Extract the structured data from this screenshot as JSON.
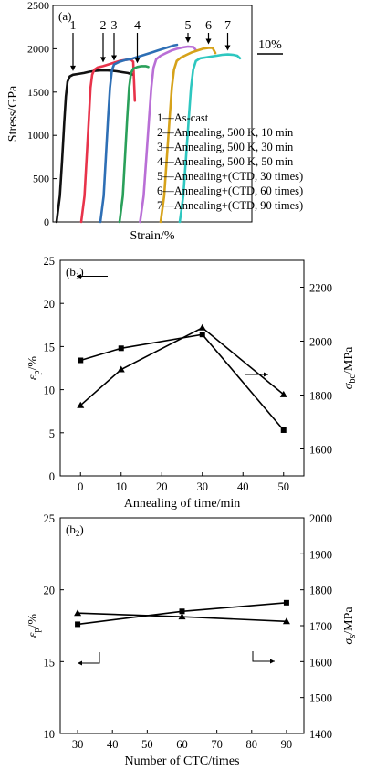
{
  "chart_data": [
    {
      "panel": "(a)",
      "type": "line",
      "xlabel": "Strain/%",
      "ylabel": "Stress/GPa",
      "ylim": [
        0,
        2500
      ],
      "yticks": [
        0,
        500,
        1000,
        1500,
        2000,
        2500
      ],
      "scale_bar": "10%",
      "grid": false,
      "legend_position": "bottom-right",
      "legend": [
        "1—As-cast",
        "2—Annealing, 500 K, 10 min",
        "3—Annealing, 500 K, 30 min",
        "4—Annealing, 500 K, 50 min",
        "5—Annealing+(CTD, 30 times)",
        "6—Annealing+(CTD, 60 times)",
        "7—Annealing+(CTD, 90 times)"
      ],
      "curve_labels": [
        "1",
        "2",
        "3",
        "4",
        "5",
        "6",
        "7"
      ],
      "series": [
        {
          "label": "1",
          "color": "#111111",
          "x": [
            0,
            1.2,
            2.0,
            2.8,
            3.4,
            4.0,
            4.8,
            6,
            8,
            10,
            12,
            14,
            16,
            18,
            20,
            22,
            24,
            26,
            28
          ],
          "y": [
            0,
            300,
            700,
            1150,
            1450,
            1620,
            1680,
            1700,
            1710,
            1720,
            1735,
            1745,
            1750,
            1752,
            1748,
            1740,
            1730,
            1720,
            1700
          ]
        },
        {
          "label": "2",
          "color": "#e8334a",
          "x": [
            9,
            10.2,
            11,
            11.8,
            12.4,
            13,
            13.8,
            15,
            17,
            19,
            21,
            23,
            25,
            27,
            28,
            28.6
          ],
          "y": [
            0,
            300,
            750,
            1200,
            1550,
            1700,
            1760,
            1785,
            1800,
            1820,
            1840,
            1860,
            1870,
            1880,
            1850,
            1400
          ]
        },
        {
          "label": "3",
          "color": "#2e6fb5",
          "x": [
            16,
            17.2,
            18,
            18.8,
            19.5,
            20.2,
            21,
            23,
            25,
            27,
            29,
            31,
            33,
            35,
            37,
            39,
            41,
            43,
            44
          ],
          "y": [
            0,
            300,
            750,
            1200,
            1550,
            1750,
            1820,
            1850,
            1870,
            1880,
            1900,
            1920,
            1940,
            1960,
            1980,
            2000,
            2020,
            2040,
            2045
          ]
        },
        {
          "label": "4",
          "color": "#2aa05a",
          "x": [
            23,
            24.2,
            25,
            25.8,
            26.5,
            27.2,
            28,
            29.5,
            31,
            32.5,
            33.5
          ],
          "y": [
            0,
            300,
            750,
            1200,
            1550,
            1720,
            1770,
            1790,
            1800,
            1800,
            1790
          ]
        },
        {
          "label": "5",
          "color": "#b96fd6",
          "x": [
            30.5,
            31.8,
            32.8,
            33.8,
            34.6,
            35.4,
            36.4,
            38,
            40,
            42,
            44,
            46,
            48,
            50,
            51
          ],
          "y": [
            0,
            300,
            750,
            1200,
            1550,
            1780,
            1880,
            1920,
            1950,
            1980,
            2000,
            2015,
            2025,
            2020,
            1980
          ]
        },
        {
          "label": "6",
          "color": "#d6a21a",
          "x": [
            38,
            39.3,
            40.3,
            41.3,
            42.1,
            42.9,
            43.9,
            45.5,
            47.5,
            49.5,
            51.5,
            53.5,
            55.5,
            57,
            58
          ],
          "y": [
            0,
            300,
            750,
            1200,
            1550,
            1760,
            1860,
            1900,
            1930,
            1960,
            1980,
            2000,
            2010,
            2010,
            1950
          ]
        },
        {
          "label": "7",
          "color": "#2ec7c0",
          "x": [
            45,
            46.3,
            47.3,
            48.3,
            49.1,
            49.9,
            50.9,
            52.5,
            54.5,
            56.5,
            58.5,
            60.5,
            62.5,
            64.5,
            66,
            67
          ],
          "y": [
            0,
            300,
            750,
            1200,
            1550,
            1760,
            1860,
            1890,
            1900,
            1910,
            1920,
            1930,
            1935,
            1930,
            1920,
            1890
          ]
        }
      ]
    },
    {
      "panel": "(b₁)",
      "panel_base": "(b",
      "panel_sub": "1",
      "panel_close": ")",
      "type": "line",
      "x": [
        0,
        10,
        30,
        50
      ],
      "xlim": [
        -5,
        55
      ],
      "xticks": [
        0,
        10,
        20,
        30,
        40,
        50
      ],
      "xlabel": "Annealing of time/min",
      "ylabel_left": "εp/%",
      "ylabel_left_main": "ε",
      "ylabel_left_sub": "p",
      "ylabel_left_tail": "/%",
      "ylim_left": [
        0,
        25
      ],
      "yticks_left": [
        0,
        5,
        10,
        15,
        20,
        25
      ],
      "ylabel_right": "σbc/MPa",
      "ylabel_right_main": "σ",
      "ylabel_right_sub": "bc",
      "ylabel_right_tail": "/MPa",
      "ylim_right": [
        1500,
        2300
      ],
      "yticks_right": [
        1600,
        1800,
        2000,
        2200
      ],
      "grid": false,
      "series": [
        {
          "marker": "square",
          "axis": "left",
          "values": [
            13.4,
            14.8,
            16.4,
            5.3
          ]
        },
        {
          "marker": "triangle",
          "axis": "right",
          "values": [
            1762,
            1895,
            2050,
            1802
          ]
        }
      ]
    },
    {
      "panel": "(b₂)",
      "panel_base": "(b",
      "panel_sub": "2",
      "panel_close": ")",
      "type": "line",
      "x": [
        30,
        60,
        90
      ],
      "xlim": [
        25,
        95
      ],
      "xticks": [
        30,
        40,
        50,
        60,
        70,
        80,
        90
      ],
      "xlabel": "Number of CTC/times",
      "ylabel_left": "εp/%",
      "ylabel_left_main": "ε",
      "ylabel_left_sub": "p",
      "ylabel_left_tail": "/%",
      "ylim_left": [
        10,
        25
      ],
      "yticks_left": [
        10,
        15,
        20,
        25
      ],
      "ylabel_right": "σs/MPa",
      "ylabel_right_main": "σ",
      "ylabel_right_sub": "s",
      "ylabel_right_tail": "/MPa",
      "ylim_right": [
        1400,
        2000
      ],
      "yticks_right": [
        1400,
        1500,
        1600,
        1700,
        1800,
        1900,
        2000
      ],
      "grid": false,
      "series": [
        {
          "marker": "square",
          "axis": "left",
          "values": [
            17.6,
            18.5,
            19.1
          ]
        },
        {
          "marker": "triangle",
          "axis": "right",
          "values": [
            1735,
            1725,
            1712
          ]
        }
      ]
    }
  ]
}
